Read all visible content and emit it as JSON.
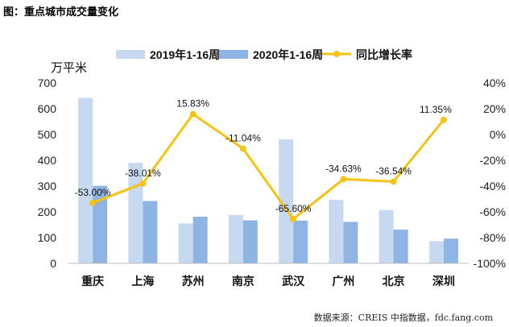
{
  "figure_title": "图：重点城市成交量变化",
  "source": "数据来源：CREIS 中指数据，fdc.fang.com",
  "chart_data": {
    "type": "bar+line",
    "categories": [
      "重庆",
      "上海",
      "苏州",
      "南京",
      "武汉",
      "广州",
      "北京",
      "深圳"
    ],
    "series": [
      {
        "name": "2019年1-16周",
        "type": "bar",
        "axis": "left",
        "color": "#c6d9f1",
        "values": [
          642,
          390,
          155,
          188,
          481,
          246,
          207,
          86
        ]
      },
      {
        "name": "2020年1-16周",
        "type": "bar",
        "axis": "left",
        "color": "#8eb4e3",
        "values": [
          301,
          242,
          181,
          167,
          166,
          161,
          131,
          96
        ]
      },
      {
        "name": "同比增长率",
        "type": "line",
        "axis": "right",
        "color": "#f5c215",
        "values": [
          -53.0,
          -38.01,
          15.83,
          -11.04,
          -65.6,
          -34.63,
          -36.54,
          11.35
        ],
        "labels": [
          "-53.00%",
          "-38.01%",
          "15.83%",
          "-11.04%",
          "-65.60%",
          "-34.63%",
          "-36.54%",
          "11.35%"
        ]
      }
    ],
    "left_axis": {
      "unit": "万平米",
      "min": 0,
      "max": 700,
      "ticks": [
        "0",
        "100",
        "200",
        "300",
        "400",
        "500",
        "600",
        "700"
      ]
    },
    "right_axis": {
      "min": -100,
      "max": 40,
      "ticks": [
        "-100%",
        "-80%",
        "-60%",
        "-40%",
        "-20%",
        "0%",
        "20%",
        "40%"
      ]
    },
    "legend_position": "top"
  }
}
